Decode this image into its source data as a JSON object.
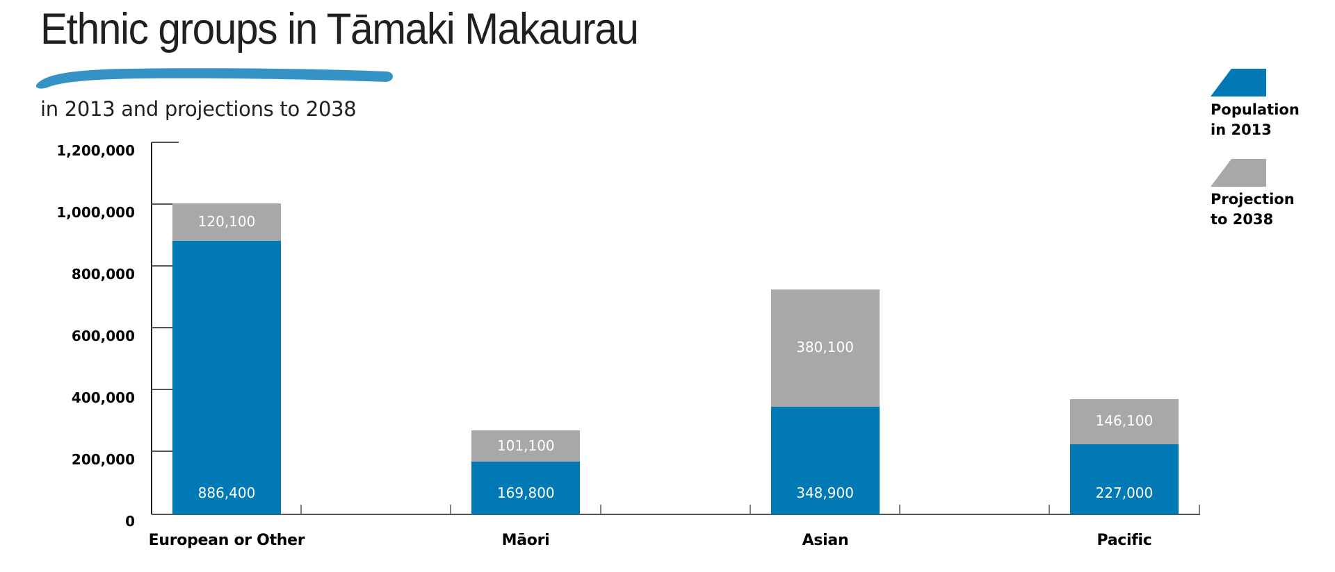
{
  "header": {
    "title": "Ethnic groups in Tāmaki Makaurau",
    "subtitle": "in 2013 and projections to 2038",
    "brush_color": "#3592c5"
  },
  "legend": {
    "items": [
      {
        "line1": "Population",
        "line2": "in 2013",
        "color": "#0079b4"
      },
      {
        "line1": "Projection",
        "line2": "to 2038",
        "color": "#a8a8a8"
      }
    ]
  },
  "yaxis": {
    "ticks": [
      "0",
      "200,000",
      "400,000",
      "600,000",
      "800,000",
      "1,000,000",
      "1,200,000"
    ]
  },
  "bars": [
    {
      "label": "European or Other",
      "base": 886400,
      "base_label": "886,400",
      "proj": 120100,
      "proj_label": "120,100"
    },
    {
      "label": "Māori",
      "base": 169800,
      "base_label": "169,800",
      "proj": 101100,
      "proj_label": "101,100"
    },
    {
      "label": "Asian",
      "base": 348900,
      "base_label": "348,900",
      "proj": 380100,
      "proj_label": "380,100"
    },
    {
      "label": "Pacific",
      "base": 227000,
      "base_label": "227,000",
      "proj": 146100,
      "proj_label": "146,100"
    }
  ],
  "chart_data": {
    "type": "bar",
    "stacked": true,
    "title": "Ethnic groups in Tāmaki Makaurau",
    "subtitle": "in 2013 and projections to 2038",
    "categories": [
      "European or Other",
      "Māori",
      "Asian",
      "Pacific"
    ],
    "series": [
      {
        "name": "Population in 2013",
        "color": "#0079b4",
        "values": [
          886400,
          169800,
          348900,
          227000
        ]
      },
      {
        "name": "Projection to 2038",
        "color": "#a8a8a8",
        "values": [
          120100,
          101100,
          380100,
          146100
        ]
      }
    ],
    "xlabel": "",
    "ylabel": "",
    "ylim": [
      0,
      1200000
    ],
    "yticks": [
      0,
      200000,
      400000,
      600000,
      800000,
      1000000,
      1200000
    ],
    "grid": false,
    "legend_position": "top-right"
  }
}
